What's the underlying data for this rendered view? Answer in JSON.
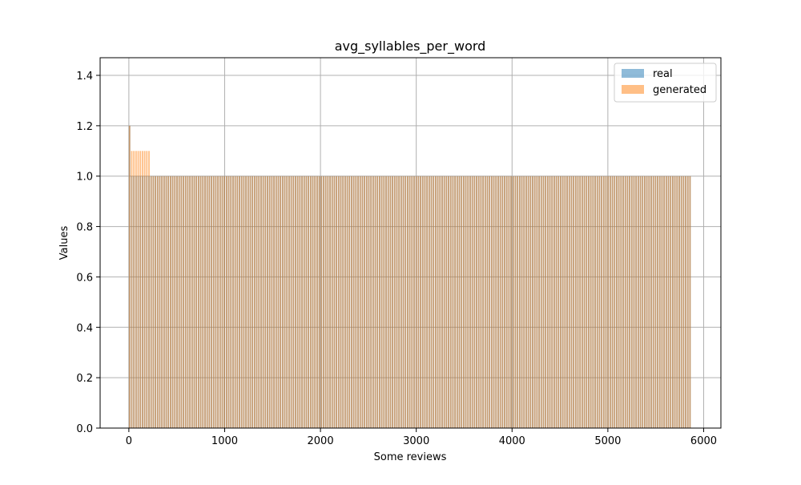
{
  "chart_data": {
    "type": "bar",
    "title": "avg_syllables_per_word",
    "xlabel": "Some reviews",
    "ylabel": "Values",
    "xlim": [
      -300,
      6180
    ],
    "ylim": [
      0.0,
      1.47
    ],
    "xticks": [
      0,
      1000,
      2000,
      3000,
      4000,
      5000,
      6000
    ],
    "yticks": [
      0.0,
      0.2,
      0.4,
      0.6,
      0.8,
      1.0,
      1.2,
      1.4
    ],
    "xtick_labels": [
      "0",
      "1000",
      "2000",
      "3000",
      "4000",
      "5000",
      "6000"
    ],
    "ytick_labels": [
      "0.0",
      "0.2",
      "0.4",
      "0.6",
      "0.8",
      "1.0",
      "1.2",
      "1.4"
    ],
    "grid": true,
    "legend_position": "top-right",
    "bar_pattern": {
      "x_start": 0,
      "x_end": 5860,
      "step": 22.5,
      "bar_width": 15,
      "default_value": 1.0
    },
    "series": [
      {
        "name": "real",
        "color": "#1f77b4",
        "opacity": 0.5,
        "value": 1.0,
        "special": [
          {
            "x": 0,
            "value": 1.2
          }
        ]
      },
      {
        "name": "generated",
        "color": "#ff7f0e",
        "opacity": 0.5,
        "value": 1.0,
        "special": [
          {
            "x": 0,
            "value": 1.2
          },
          {
            "x_from": 15,
            "x_to": 210,
            "value": 1.1
          }
        ]
      }
    ]
  }
}
